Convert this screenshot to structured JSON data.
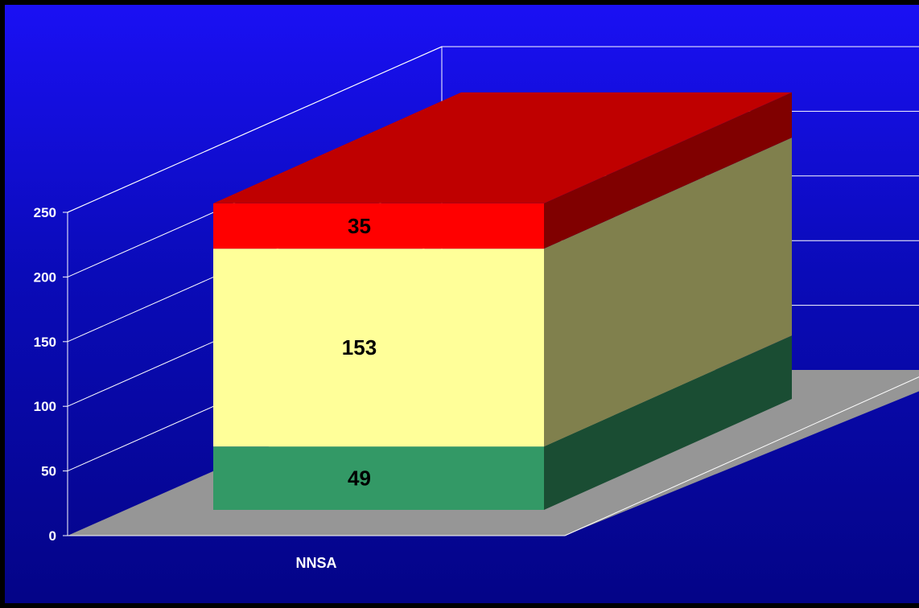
{
  "chart_data": {
    "type": "bar",
    "style": "3d-stacked",
    "categories": [
      "NNSA"
    ],
    "series": [
      {
        "values": [
          49
        ],
        "color": "#339966"
      },
      {
        "values": [
          153
        ],
        "color": "#ffff99"
      },
      {
        "values": [
          35
        ],
        "color": "#ff0000"
      }
    ],
    "data_labels": [
      "49",
      "153",
      "35"
    ],
    "ylim": [
      0,
      250
    ],
    "y_ticks": [
      "0",
      "50",
      "100",
      "150",
      "200",
      "250"
    ],
    "grid": true,
    "legend": "none",
    "colors": {
      "background_top": "#1a10f4",
      "background_bottom": "#040487",
      "floor": "#969696",
      "grid": "#ffffff",
      "text": "#ffffff"
    }
  }
}
